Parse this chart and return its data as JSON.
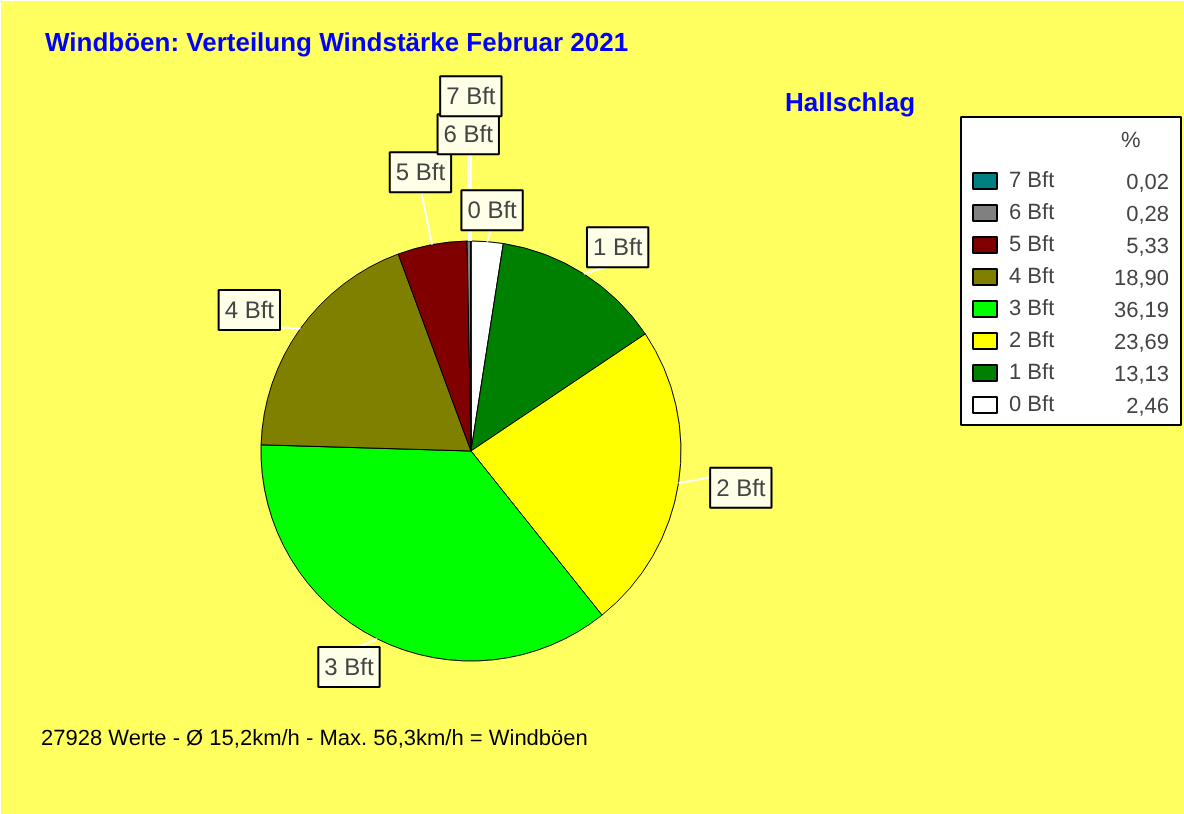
{
  "chart_data": {
    "type": "pie",
    "title": "Windböen: Verteilung Windstärke  Februar 2021",
    "subtitle": "Hallschlag",
    "categories": [
      "7 Bft",
      "6 Bft",
      "5 Bft",
      "4 Bft",
      "3 Bft",
      "2 Bft",
      "1 Bft",
      "0 Bft"
    ],
    "values": [
      0.02,
      0.28,
      5.33,
      18.9,
      36.19,
      23.69,
      13.13,
      2.46
    ],
    "value_labels": [
      "0,02",
      "0,28",
      "5,33",
      "18,90",
      "36,19",
      "23,69",
      "13,13",
      "2,46"
    ],
    "colors": [
      "#008080",
      "#808080",
      "#800000",
      "#808000",
      "#00ff00",
      "#ffff00",
      "#008000",
      "#ffffff"
    ],
    "legend": "right",
    "legend_title": "%",
    "annotations": [
      "27928 Werte   -   Ø 15,2km/h  -  Max. 56,3km/h = Windböen"
    ]
  }
}
